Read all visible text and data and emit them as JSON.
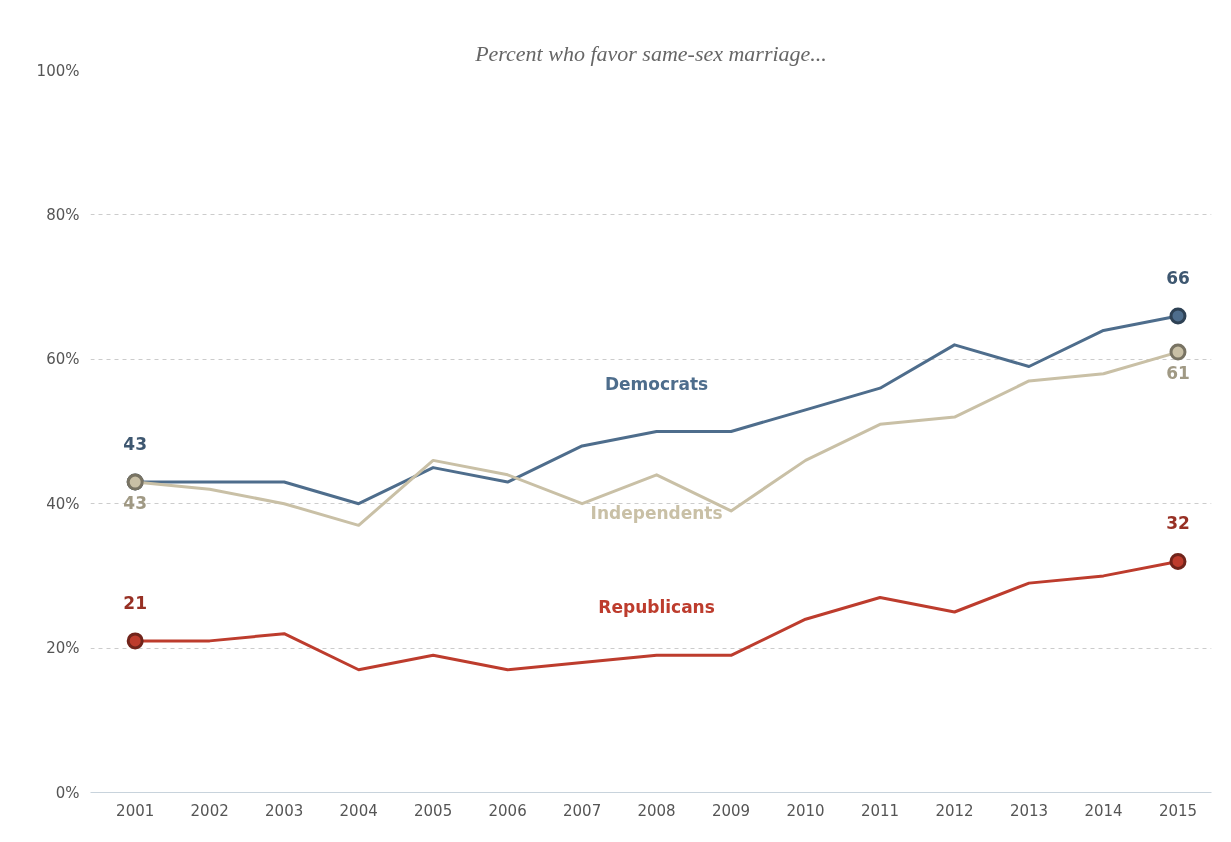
{
  "chart_data": {
    "type": "line",
    "title": "Percent who favor same-sex marriage...",
    "categories": [
      "2001",
      "2002",
      "2003",
      "2004",
      "2005",
      "2006",
      "2007",
      "2008",
      "2009",
      "2010",
      "2011",
      "2012",
      "2013",
      "2014",
      "2015"
    ],
    "series": [
      {
        "name": "Democrats",
        "color": "#4e6d8c",
        "values": [
          43,
          43,
          43,
          40,
          45,
          43,
          48,
          50,
          50,
          53,
          56,
          62,
          59,
          64,
          66
        ],
        "value_labels": [
          "43",
          null,
          null,
          null,
          null,
          null,
          null,
          null,
          null,
          null,
          null,
          null,
          null,
          null,
          "66"
        ]
      },
      {
        "name": "Independents",
        "color": "#c9c0a6",
        "values": [
          43,
          42,
          40,
          37,
          46,
          44,
          40,
          44,
          39,
          46,
          51,
          52,
          57,
          58,
          61
        ],
        "value_labels": [
          "43",
          null,
          null,
          null,
          null,
          null,
          null,
          null,
          null,
          null,
          null,
          null,
          null,
          null,
          "61"
        ]
      },
      {
        "name": "Republicans",
        "color": "#bd3c2d",
        "values": [
          21,
          21,
          22,
          17,
          19,
          17,
          18,
          19,
          19,
          24,
          27,
          25,
          29,
          30,
          32
        ],
        "value_labels": [
          "21",
          null,
          null,
          null,
          null,
          null,
          null,
          null,
          null,
          null,
          null,
          null,
          null,
          null,
          "32"
        ]
      }
    ],
    "ylim": [
      0,
      100
    ],
    "yticks": [
      {
        "value": 0,
        "label": "0%"
      },
      {
        "value": 20,
        "label": "20%"
      },
      {
        "value": 40,
        "label": "40%"
      },
      {
        "value": 60,
        "label": "60%"
      },
      {
        "value": 80,
        "label": "80%"
      },
      {
        "value": 100,
        "label": "100%"
      }
    ],
    "grid": "y",
    "line_style": "solid"
  }
}
